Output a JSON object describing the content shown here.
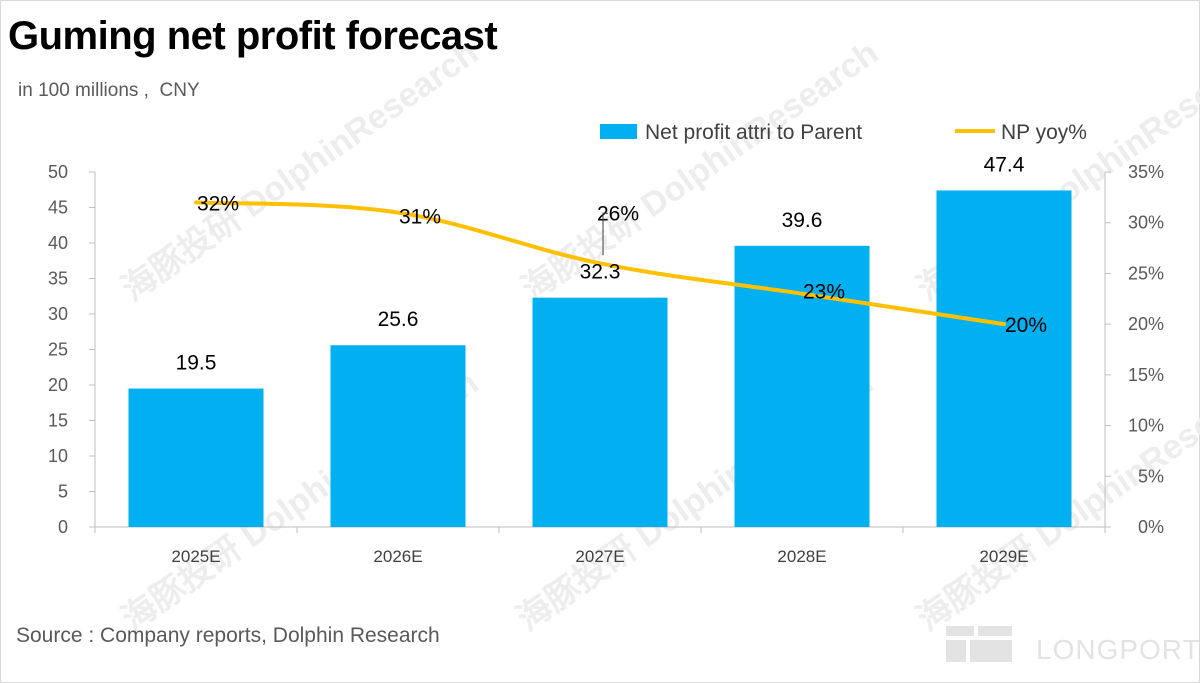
{
  "title": "Guming net profit forecast",
  "subtitle": "in 100 millions ,  CNY",
  "source": "Source : Company reports, Dolphin Research",
  "brand": "LONGPORT",
  "watermark": "海豚投研 DolphinResearch",
  "colors": {
    "bar": "#00b0f0",
    "line": "#ffc000",
    "axis": "#bfbfbf"
  },
  "chart_data": {
    "type": "bar",
    "categories": [
      "2025E",
      "2026E",
      "2027E",
      "2028E",
      "2029E"
    ],
    "series": [
      {
        "name": "Net profit attri to Parent",
        "type": "bar",
        "axis": "left",
        "values": [
          19.5,
          25.6,
          32.3,
          39.6,
          47.4
        ],
        "labels": [
          "19.5",
          "25.6",
          "32.3",
          "39.6",
          "47.4"
        ]
      },
      {
        "name": "NP yoy%",
        "type": "line",
        "axis": "right",
        "values": [
          32,
          31,
          26,
          23,
          20
        ],
        "labels": [
          "32%",
          "31%",
          "26%",
          "23%",
          "20%"
        ]
      }
    ],
    "y_left": {
      "min": 0,
      "max": 50,
      "step": 5,
      "ticks": [
        "0",
        "5",
        "10",
        "15",
        "20",
        "25",
        "30",
        "35",
        "40",
        "45",
        "50"
      ]
    },
    "y_right": {
      "min": 0,
      "max": 35,
      "step": 5,
      "ticks": [
        "0%",
        "5%",
        "10%",
        "15%",
        "20%",
        "25%",
        "30%",
        "35%"
      ]
    },
    "legend_position": "top-right",
    "grid": false
  }
}
